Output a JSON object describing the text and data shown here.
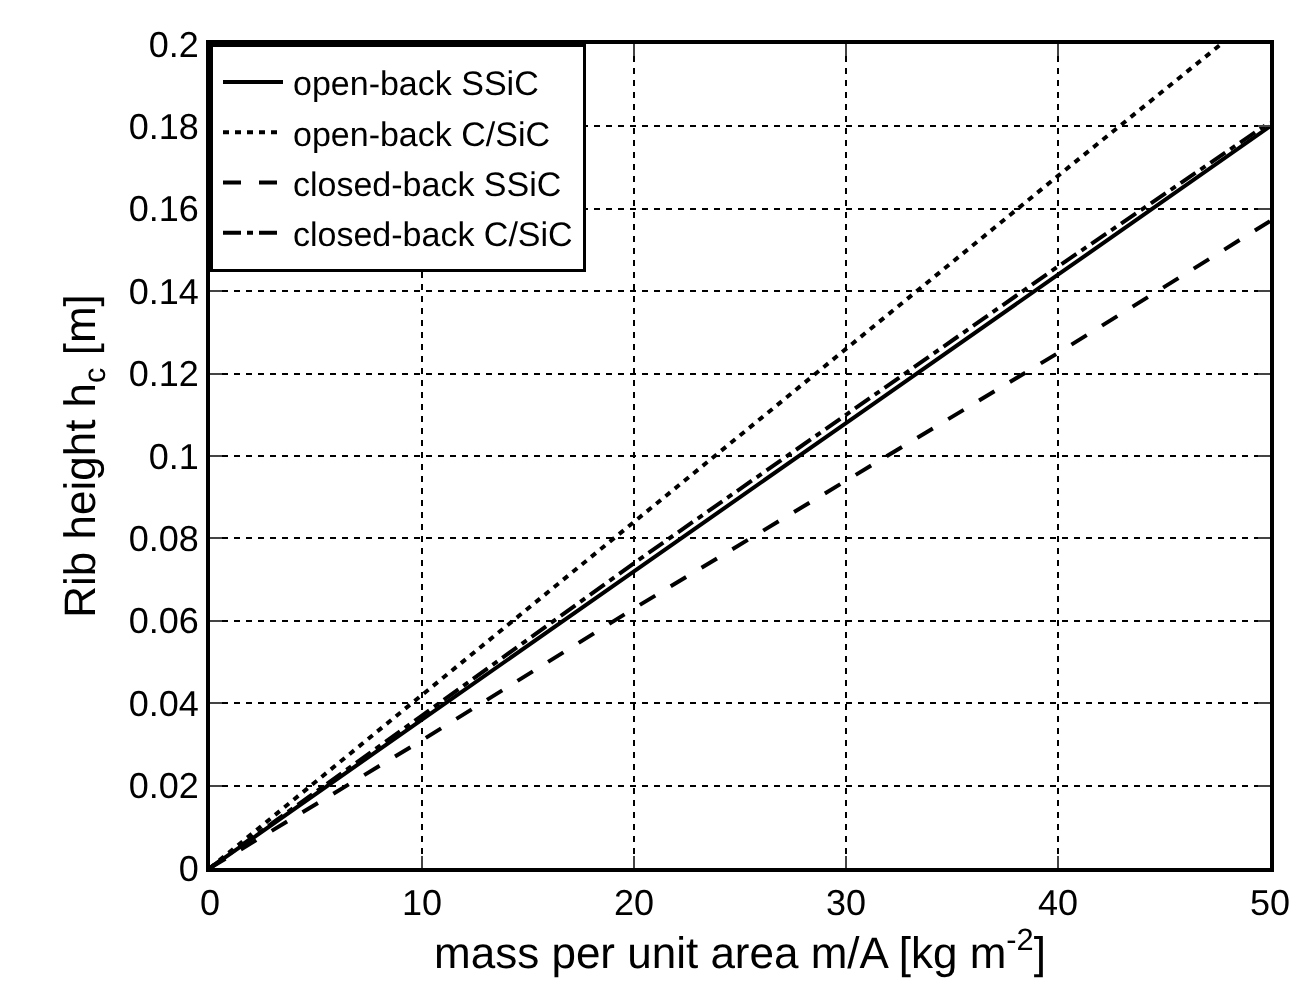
{
  "chart_data": {
    "type": "line",
    "xlabel": "mass per unit area m/A [kg m$^{-2}$]",
    "ylabel": "Rib height h$_{c}$ [m]",
    "xlim": [
      0,
      50
    ],
    "xticks": [
      0,
      10,
      20,
      30,
      40,
      50
    ],
    "ylim": [
      0,
      0.2
    ],
    "yticks": [
      0,
      0.02,
      0.04,
      0.06,
      0.08,
      0.1,
      0.12,
      0.14,
      0.16,
      0.18,
      0.2
    ],
    "grid": true,
    "legend": "top left",
    "marker": "none",
    "series": [
      {
        "name": "open-back SSiC",
        "color": "#000000",
        "line_style": "solid",
        "x": [
          0,
          10,
          20,
          30,
          40,
          50
        ],
        "values": [
          0,
          0.036,
          0.072,
          0.108,
          0.144,
          0.18
        ]
      },
      {
        "name": "open-back C/SiC",
        "color": "#000000",
        "line_style": "dotted",
        "x": [
          0,
          10,
          20,
          30,
          40,
          47.7
        ],
        "values": [
          0,
          0.042,
          0.084,
          0.126,
          0.168,
          0.2
        ]
      },
      {
        "name": "closed-back SSiC",
        "color": "#000000",
        "line_style": "dashed",
        "x": [
          0,
          10,
          20,
          30,
          40,
          50
        ],
        "values": [
          0,
          0.031,
          0.063,
          0.094,
          0.125,
          0.157
        ]
      },
      {
        "name": "closed-back C/SiC",
        "color": "#000000",
        "line_style": "dashdot",
        "x": [
          0,
          10,
          20,
          30,
          40,
          50
        ],
        "values": [
          0,
          0.037,
          0.074,
          0.11,
          0.146,
          0.181
        ]
      }
    ]
  }
}
